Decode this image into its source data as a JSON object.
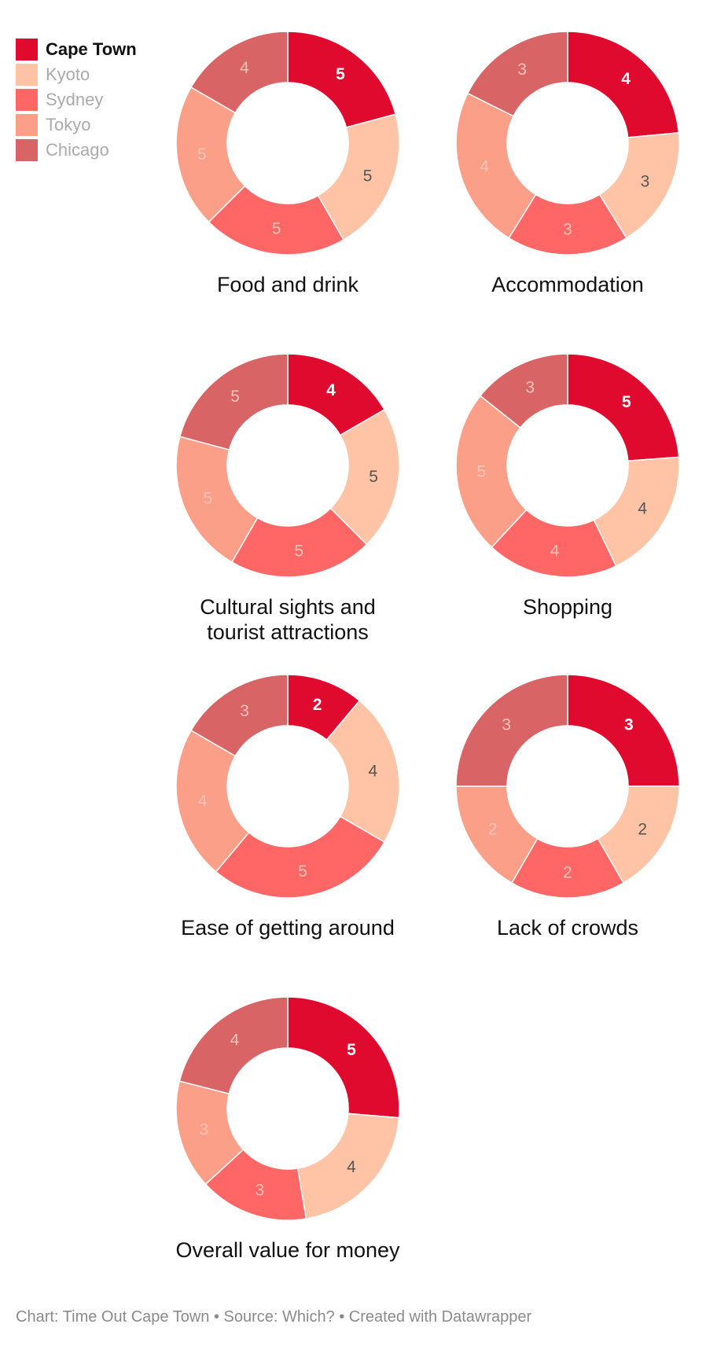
{
  "legend": [
    {
      "name": "Cape Town",
      "color": "#e00a2e",
      "highlight": true
    },
    {
      "name": "Kyoto",
      "color": "#ffc4a6",
      "highlight": false
    },
    {
      "name": "Sydney",
      "color": "#ff6666",
      "highlight": false
    },
    {
      "name": "Tokyo",
      "color": "#fc9f88",
      "highlight": false
    },
    {
      "name": "Chicago",
      "color": "#d86466",
      "highlight": false
    }
  ],
  "chart_data": [
    {
      "type": "pie",
      "title": [
        "Food and drink"
      ],
      "categories": [
        "Cape Town",
        "Kyoto",
        "Sydney",
        "Tokyo",
        "Chicago"
      ],
      "values": [
        5,
        5,
        5,
        5,
        4
      ]
    },
    {
      "type": "pie",
      "title": [
        "Accommodation"
      ],
      "categories": [
        "Cape Town",
        "Kyoto",
        "Sydney",
        "Tokyo",
        "Chicago"
      ],
      "values": [
        4,
        3,
        3,
        4,
        3
      ]
    },
    {
      "type": "pie",
      "title": [
        "Cultural sights and",
        "tourist attractions"
      ],
      "categories": [
        "Cape Town",
        "Kyoto",
        "Sydney",
        "Tokyo",
        "Chicago"
      ],
      "values": [
        4,
        5,
        5,
        5,
        5
      ]
    },
    {
      "type": "pie",
      "title": [
        "Shopping"
      ],
      "categories": [
        "Cape Town",
        "Kyoto",
        "Sydney",
        "Tokyo",
        "Chicago"
      ],
      "values": [
        5,
        4,
        4,
        5,
        3
      ]
    },
    {
      "type": "pie",
      "title": [
        "Ease of getting around"
      ],
      "categories": [
        "Cape Town",
        "Kyoto",
        "Sydney",
        "Tokyo",
        "Chicago"
      ],
      "values": [
        2,
        4,
        5,
        4,
        3
      ]
    },
    {
      "type": "pie",
      "title": [
        "Lack of crowds"
      ],
      "categories": [
        "Cape Town",
        "Kyoto",
        "Sydney",
        "Tokyo",
        "Chicago"
      ],
      "values": [
        3,
        2,
        2,
        2,
        3
      ]
    },
    {
      "type": "pie",
      "title": [
        "Overall value for money"
      ],
      "categories": [
        "Cape Town",
        "Kyoto",
        "Sydney",
        "Tokyo",
        "Chicago"
      ],
      "values": [
        5,
        4,
        3,
        3,
        4
      ]
    }
  ],
  "label_colors": {
    "highlight": "#ffffff",
    "kyoto": "#555555",
    "muted": "#f6c4b8"
  },
  "footer": "Chart: Time Out Cape Town • Source: Which? • Created with Datawrapper"
}
